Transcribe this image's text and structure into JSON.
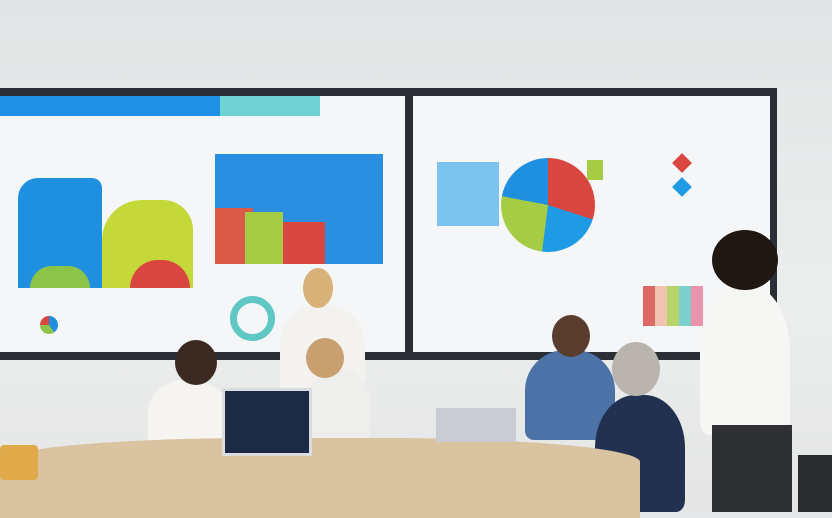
{
  "scene": {
    "colors": {
      "wall": "#e6e8e9",
      "screen_frame": "#2b2f35",
      "chart_blue": "#1f8fe0",
      "chart_green": "#b7d43c",
      "chart_red": "#d9453f",
      "table_wood": "#d9c3a1"
    }
  }
}
